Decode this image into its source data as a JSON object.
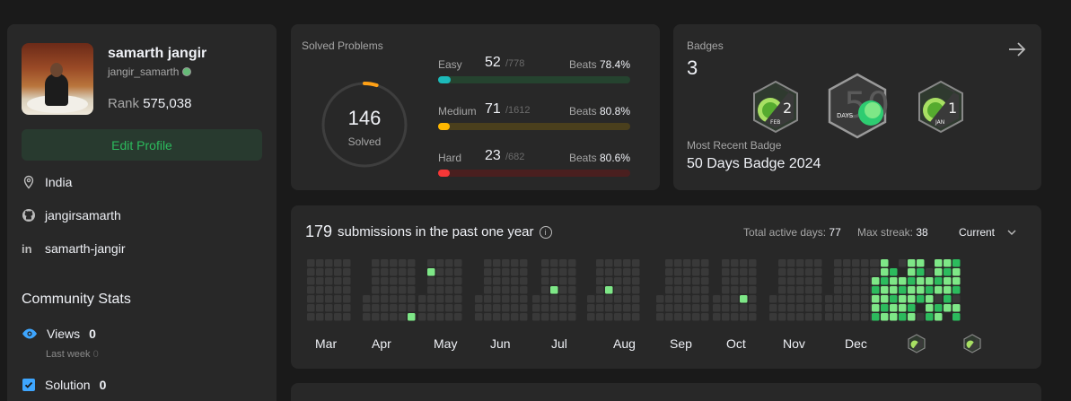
{
  "profile": {
    "name": "samarth jangir",
    "username": "jangir_samarth",
    "rank_label": "Rank",
    "rank_value": "575,038",
    "edit_button": "Edit Profile",
    "location": "India",
    "github": "jangirsamarth",
    "linkedin": "samarth-jangir",
    "community_title": "Community Stats",
    "views_label": "Views",
    "views_value": "0",
    "last_week_label": "Last week",
    "last_week_value": "0",
    "solution_label": "Solution",
    "solution_value": "0"
  },
  "solved": {
    "title": "Solved Problems",
    "total": "146",
    "total_label": "Solved",
    "progress_fraction": 0.048,
    "difficulties": [
      {
        "name": "Easy",
        "count": "52",
        "total": "/778",
        "beats_label": "Beats",
        "beats": "78.4%",
        "fraction": 0.067,
        "track": "#25432f",
        "color": "#1cbaba"
      },
      {
        "name": "Medium",
        "count": "71",
        "total": "/1612",
        "beats_label": "Beats",
        "beats": "80.8%",
        "fraction": 0.044,
        "track": "#4a3f1c",
        "color": "#ffb700"
      },
      {
        "name": "Hard",
        "count": "23",
        "total": "/682",
        "beats_label": "Beats",
        "beats": "80.6%",
        "fraction": 0.034,
        "track": "#4a1f1f",
        "color": "#f63737"
      }
    ]
  },
  "badges": {
    "title": "Badges",
    "count": "3",
    "recent_label": "Most Recent Badge",
    "recent_value": "50 Days Badge 2024",
    "items": [
      {
        "icon": "feb-badge-icon",
        "number": "2",
        "month": "FEB"
      },
      {
        "icon": "50-days-badge-icon",
        "number": "50",
        "month": "DAYS"
      },
      {
        "icon": "jan-badge-icon",
        "number": "1",
        "month": "JAN"
      }
    ]
  },
  "submissions": {
    "count": "179",
    "label": "submissions in the past one year",
    "active_days_label": "Total active days:",
    "active_days": "77",
    "max_streak_label": "Max streak:",
    "max_streak": "38",
    "dropdown": "Current",
    "months": [
      "Mar",
      "Apr",
      "May",
      "Jun",
      "Jul",
      "Aug",
      "Sep",
      "Oct",
      "Nov",
      "Dec"
    ]
  },
  "colors": {
    "empty_cell": "#393939",
    "light_green": "#7ee787",
    "green": "#2cbb5d",
    "accent_green": "#2cbb5d"
  }
}
